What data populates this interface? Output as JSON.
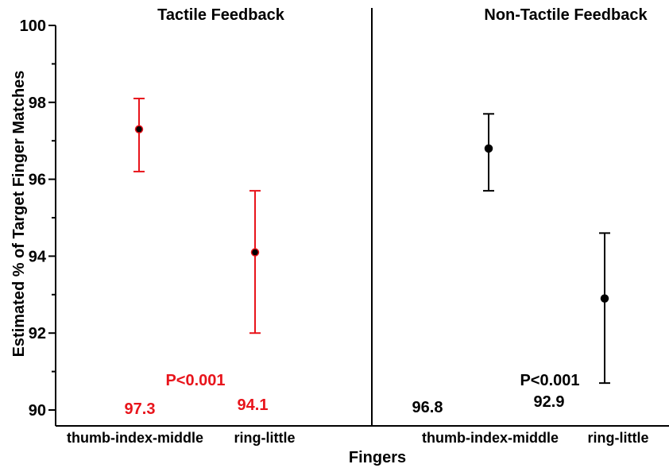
{
  "chart_data": {
    "type": "scatter",
    "xlabel": "Fingers",
    "ylabel": "Estimated % of Target Finger Matches",
    "ylim": [
      90,
      100
    ],
    "yticks": [
      "90",
      "92",
      "94",
      "96",
      "98",
      "100"
    ],
    "grid": false,
    "panels": [
      {
        "title": "Tactile Feedback",
        "color": "#e8141b",
        "categories": [
          "thumb-index-middle",
          "ring-little"
        ],
        "points": [
          {
            "category": "thumb-index-middle",
            "value": 97.3,
            "lower": 96.2,
            "upper": 98.1,
            "label": "97.3"
          },
          {
            "category": "ring-little",
            "value": 94.1,
            "lower": 92.0,
            "upper": 95.7,
            "label": "94.1"
          }
        ],
        "p_value": "P<0.001"
      },
      {
        "title": "Non-Tactile Feedback",
        "color": "#000000",
        "categories": [
          "thumb-index-middle",
          "ring-little"
        ],
        "points": [
          {
            "category": "thumb-index-middle",
            "value": 96.8,
            "lower": 95.7,
            "upper": 97.7,
            "label": "96.8"
          },
          {
            "category": "ring-little",
            "value": 92.9,
            "lower": 90.7,
            "upper": 94.6,
            "label": "92.9"
          }
        ],
        "p_value": "P<0.001"
      }
    ]
  }
}
